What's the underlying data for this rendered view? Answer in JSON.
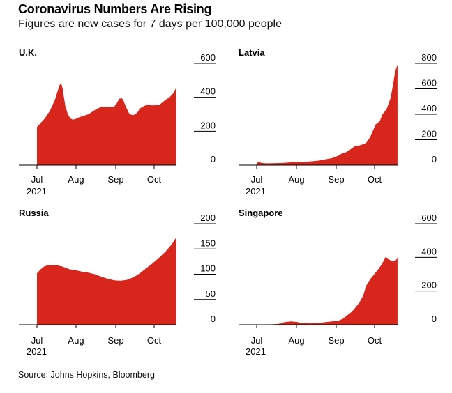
{
  "header": {
    "title": "Coronavirus Numbers Are Rising",
    "subtitle": "Figures are new cases for 7 days per 100,000 people"
  },
  "footer": {
    "source": "Source: Johns Hopkins, Bloomberg"
  },
  "colors": {
    "fill": "#d9261c",
    "axis": "#000000",
    "tick": "#000000"
  },
  "chart_data": [
    {
      "type": "area",
      "title": "U.K.",
      "ylim": [
        0,
        600
      ],
      "y_ticks": [
        600,
        400,
        200,
        0
      ],
      "x_ticks": [
        "Jul",
        "Aug",
        "Sep",
        "Oct"
      ],
      "x_year_label": "2021",
      "x_days": [
        0,
        3,
        6,
        10,
        14,
        17,
        18,
        19,
        20,
        21,
        22,
        24,
        26,
        28,
        30,
        32,
        35,
        40,
        45,
        50,
        55,
        60,
        62,
        64,
        66,
        67,
        68,
        70,
        72,
        75,
        78,
        80,
        85,
        90,
        95,
        100,
        103,
        106,
        108
      ],
      "values": [
        225,
        250,
        275,
        320,
        385,
        460,
        480,
        478,
        450,
        400,
        350,
        300,
        275,
        268,
        272,
        280,
        288,
        300,
        325,
        345,
        345,
        345,
        365,
        392,
        394,
        385,
        365,
        330,
        300,
        295,
        310,
        335,
        355,
        352,
        355,
        385,
        400,
        425,
        455
      ]
    },
    {
      "type": "area",
      "title": "Latvia",
      "ylim": [
        0,
        800
      ],
      "y_ticks": [
        800,
        600,
        400,
        200,
        0
      ],
      "x_ticks": [
        "Jul",
        "Aug",
        "Sep",
        "Oct"
      ],
      "x_year_label": "2021",
      "x_days": [
        0,
        2,
        5,
        10,
        15,
        20,
        25,
        30,
        35,
        40,
        45,
        50,
        55,
        60,
        62,
        65,
        68,
        70,
        72,
        75,
        78,
        80,
        83,
        85,
        87,
        90,
        92,
        95,
        98,
        100,
        101,
        102,
        103
      ],
      "values": [
        20,
        22,
        15,
        14,
        16,
        18,
        22,
        24,
        26,
        30,
        35,
        45,
        55,
        75,
        90,
        100,
        120,
        135,
        150,
        155,
        165,
        175,
        220,
        270,
        320,
        345,
        400,
        440,
        530,
        650,
        720,
        760,
        790
      ]
    },
    {
      "type": "area",
      "title": "Russia",
      "ylim": [
        0,
        200
      ],
      "y_ticks": [
        200,
        150,
        100,
        50,
        0
      ],
      "x_ticks": [
        "Jul",
        "Aug",
        "Sep",
        "Oct"
      ],
      "x_year_label": "2021",
      "x_days": [
        0,
        3,
        6,
        10,
        15,
        20,
        25,
        30,
        35,
        40,
        45,
        50,
        55,
        60,
        65,
        70,
        75,
        80,
        85,
        90,
        95,
        100,
        105,
        108
      ],
      "values": [
        102,
        110,
        116,
        118,
        118,
        115,
        110,
        108,
        105,
        103,
        100,
        95,
        91,
        88,
        87,
        89,
        94,
        102,
        112,
        122,
        133,
        145,
        160,
        172
      ]
    },
    {
      "type": "area",
      "title": "Singapore",
      "ylim": [
        0,
        600
      ],
      "y_ticks": [
        600,
        400,
        200,
        0
      ],
      "x_ticks": [
        "Jul",
        "Aug",
        "Sep",
        "Oct"
      ],
      "x_year_label": "2021",
      "x_days": [
        0,
        10,
        15,
        18,
        20,
        25,
        30,
        32,
        35,
        40,
        45,
        50,
        55,
        60,
        63,
        66,
        70,
        73,
        75,
        78,
        80,
        83,
        86,
        89,
        92,
        94,
        96,
        98,
        100,
        102,
        103
      ],
      "values": [
        0,
        2,
        4,
        8,
        15,
        20,
        16,
        10,
        12,
        8,
        10,
        15,
        20,
        25,
        35,
        55,
        80,
        110,
        130,
        175,
        230,
        270,
        300,
        330,
        365,
        400,
        395,
        380,
        375,
        385,
        400
      ]
    }
  ]
}
